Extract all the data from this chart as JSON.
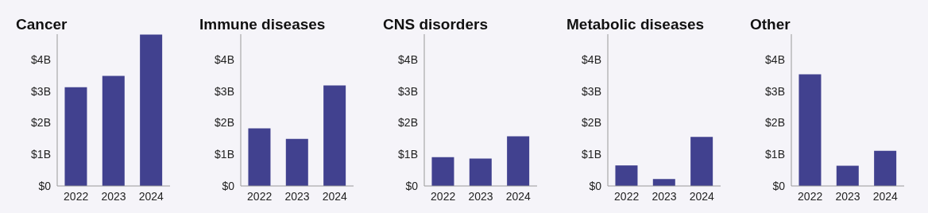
{
  "chart_data": [
    {
      "type": "bar",
      "title": "Cancer",
      "categories": [
        "2022",
        "2023",
        "2024"
      ],
      "values": [
        3.12,
        3.48,
        4.79
      ],
      "color": "#41418f",
      "ylim": [
        0,
        4.8
      ],
      "yticks": [
        {
          "value": 0,
          "label": "$0"
        },
        {
          "value": 1,
          "label": "$1B"
        },
        {
          "value": 2,
          "label": "$2B"
        },
        {
          "value": 3,
          "label": "$3B"
        },
        {
          "value": 4,
          "label": "$4B"
        }
      ],
      "grid": false,
      "legend": false
    },
    {
      "type": "bar",
      "title": "Immune diseases",
      "categories": [
        "2022",
        "2023",
        "2024"
      ],
      "values": [
        1.82,
        1.49,
        3.18
      ],
      "color": "#41418f",
      "ylim": [
        0,
        4.8
      ],
      "yticks": [
        {
          "value": 0,
          "label": "$0"
        },
        {
          "value": 1,
          "label": "$1B"
        },
        {
          "value": 2,
          "label": "$2B"
        },
        {
          "value": 3,
          "label": "$3B"
        },
        {
          "value": 4,
          "label": "$4B"
        }
      ],
      "grid": false,
      "legend": false
    },
    {
      "type": "bar",
      "title": "CNS disorders",
      "categories": [
        "2022",
        "2023",
        "2024"
      ],
      "values": [
        0.91,
        0.87,
        1.57
      ],
      "color": "#41418f",
      "ylim": [
        0,
        4.8
      ],
      "yticks": [
        {
          "value": 0,
          "label": "$0"
        },
        {
          "value": 1,
          "label": "$1B"
        },
        {
          "value": 2,
          "label": "$2B"
        },
        {
          "value": 3,
          "label": "$3B"
        },
        {
          "value": 4,
          "label": "$4B"
        }
      ],
      "grid": false,
      "legend": false
    },
    {
      "type": "bar",
      "title": "Metabolic diseases",
      "categories": [
        "2022",
        "2023",
        "2024"
      ],
      "values": [
        0.65,
        0.22,
        1.55
      ],
      "color": "#41418f",
      "ylim": [
        0,
        4.8
      ],
      "yticks": [
        {
          "value": 0,
          "label": "$0"
        },
        {
          "value": 1,
          "label": "$1B"
        },
        {
          "value": 2,
          "label": "$2B"
        },
        {
          "value": 3,
          "label": "$3B"
        },
        {
          "value": 4,
          "label": "$4B"
        }
      ],
      "grid": false,
      "legend": false
    },
    {
      "type": "bar",
      "title": "Other",
      "categories": [
        "2022",
        "2023",
        "2024"
      ],
      "values": [
        3.53,
        0.64,
        1.11
      ],
      "color": "#41418f",
      "ylim": [
        0,
        4.8
      ],
      "yticks": [
        {
          "value": 0,
          "label": "$0"
        },
        {
          "value": 1,
          "label": "$1B"
        },
        {
          "value": 2,
          "label": "$2B"
        },
        {
          "value": 3,
          "label": "$3B"
        },
        {
          "value": 4,
          "label": "$4B"
        }
      ],
      "grid": false,
      "legend": false
    }
  ]
}
